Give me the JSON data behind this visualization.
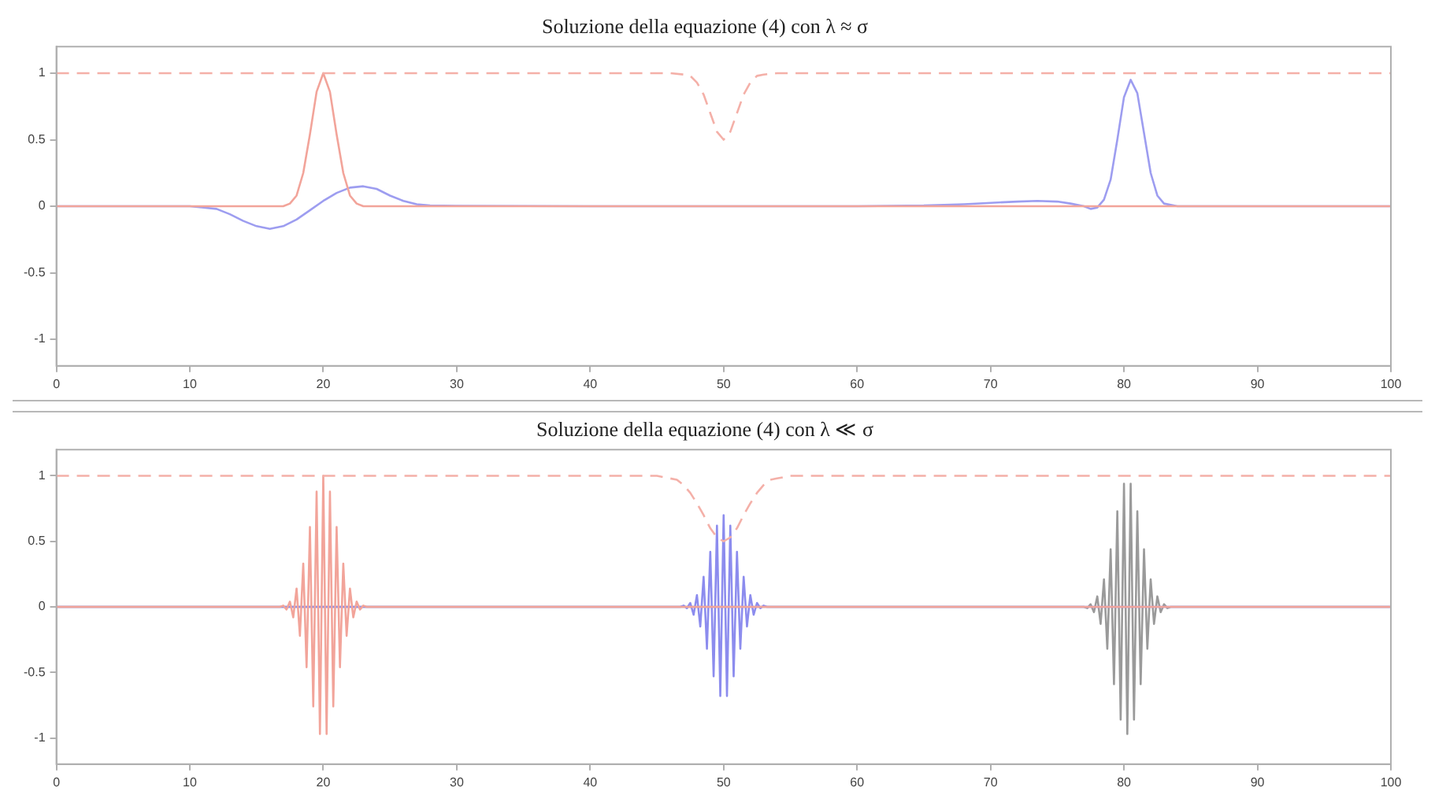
{
  "chart_data": [
    {
      "type": "line",
      "title": "Soluzione della equazione (4) con λ ≈ σ",
      "xlim": [
        0,
        100
      ],
      "xticks": [
        0,
        10,
        20,
        30,
        40,
        50,
        60,
        70,
        80,
        90,
        100
      ],
      "ylim": [
        -1.2,
        1.2
      ],
      "yticks": [
        -1,
        -0.5,
        0,
        0.5,
        1
      ],
      "grid": false,
      "legend": false,
      "series": [
        {
          "color": "#f4b0a8",
          "line_style": "dashed",
          "x": [
            0,
            46,
            47,
            47.5,
            48,
            48.5,
            49,
            49.5,
            50,
            50.5,
            51,
            51.5,
            52,
            52.5,
            53,
            54,
            100
          ],
          "values": [
            1,
            1,
            0.99,
            0.98,
            0.93,
            0.84,
            0.7,
            0.56,
            0.5,
            0.56,
            0.7,
            0.84,
            0.93,
            0.98,
            0.99,
            1,
            1
          ]
        },
        {
          "color": "#f2a49a",
          "x": [
            0,
            17,
            17.5,
            18,
            18.5,
            19,
            19.5,
            20,
            20.5,
            21,
            21.5,
            22,
            22.5,
            23,
            100
          ],
          "values": [
            0,
            0,
            0.02,
            0.08,
            0.25,
            0.54,
            0.86,
            1,
            0.86,
            0.54,
            0.25,
            0.08,
            0.02,
            0,
            0
          ]
        },
        {
          "color": "#9d9df0",
          "x": [
            0,
            10,
            12,
            13,
            14,
            15,
            16,
            17,
            18,
            19,
            20,
            21,
            22,
            23,
            24,
            25,
            26,
            27,
            28,
            30,
            40,
            60,
            65,
            68,
            70,
            72,
            73.5,
            75,
            76,
            77,
            77.5,
            78,
            78.5,
            79,
            79.5,
            80,
            80.5,
            81,
            81.5,
            82,
            82.5,
            83,
            84,
            100
          ],
          "values": [
            0,
            0,
            -0.02,
            -0.06,
            -0.11,
            -0.15,
            -0.17,
            -0.15,
            -0.1,
            -0.03,
            0.04,
            0.1,
            0.14,
            0.15,
            0.13,
            0.08,
            0.04,
            0.015,
            0.005,
            0.003,
            0,
            0,
            0.005,
            0.015,
            0.025,
            0.035,
            0.04,
            0.035,
            0.02,
            0,
            -0.02,
            -0.01,
            0.05,
            0.2,
            0.5,
            0.82,
            0.95,
            0.85,
            0.55,
            0.25,
            0.08,
            0.02,
            0,
            0
          ]
        }
      ]
    },
    {
      "type": "line",
      "title": "Soluzione della equazione (4) con λ ≪ σ",
      "xlim": [
        0,
        100
      ],
      "xticks": [
        0,
        10,
        20,
        30,
        40,
        50,
        60,
        70,
        80,
        90,
        100
      ],
      "ylim": [
        -1.2,
        1.2
      ],
      "yticks": [
        -1,
        -0.5,
        0,
        0.5,
        1
      ],
      "grid": false,
      "legend": false,
      "series": [
        {
          "color": "#f4b0a8",
          "line_style": "dashed",
          "x": [
            0,
            45,
            46,
            46.5,
            47,
            47.5,
            48,
            48.5,
            49,
            49.5,
            50,
            50.5,
            51,
            51.5,
            52,
            52.5,
            53,
            53.5,
            54,
            55,
            100
          ],
          "values": [
            1,
            1,
            0.98,
            0.97,
            0.93,
            0.87,
            0.79,
            0.7,
            0.6,
            0.53,
            0.5,
            0.53,
            0.6,
            0.7,
            0.79,
            0.87,
            0.93,
            0.97,
            0.98,
            1,
            1
          ]
        },
        {
          "color": "#f2a49a",
          "x": [
            0,
            16.75,
            17,
            17.25,
            17.5,
            17.75,
            18,
            18.25,
            18.5,
            18.75,
            19,
            19.25,
            19.5,
            19.75,
            20,
            20.25,
            20.5,
            20.75,
            21,
            21.25,
            21.5,
            21.75,
            22,
            22.25,
            22.5,
            22.75,
            23,
            23.25,
            100
          ],
          "values": [
            0,
            0,
            0.01,
            -0.02,
            0.04,
            -0.08,
            0.14,
            -0.22,
            0.33,
            -0.46,
            0.61,
            -0.76,
            0.88,
            -0.97,
            1,
            -0.97,
            0.88,
            -0.76,
            0.61,
            -0.46,
            0.33,
            -0.22,
            0.14,
            -0.08,
            0.04,
            -0.02,
            0.01,
            0,
            0
          ]
        },
        {
          "color": "#8c8cee",
          "x": [
            0,
            46.75,
            47,
            47.25,
            47.5,
            47.75,
            48,
            48.25,
            48.5,
            48.75,
            49,
            49.25,
            49.5,
            49.75,
            50,
            50.25,
            50.5,
            50.75,
            51,
            51.25,
            51.5,
            51.75,
            52,
            52.25,
            52.5,
            52.75,
            53,
            53.25,
            100
          ],
          "values": [
            0,
            0,
            0.01,
            -0.01,
            0.03,
            -0.06,
            0.09,
            -0.15,
            0.23,
            -0.32,
            0.42,
            -0.53,
            0.62,
            -0.68,
            0.7,
            -0.68,
            0.62,
            -0.53,
            0.42,
            -0.32,
            0.23,
            -0.15,
            0.09,
            -0.06,
            0.03,
            -0.01,
            0.01,
            0,
            0
          ]
        },
        {
          "color": "#9a9a9a",
          "x": [
            0,
            77,
            77.25,
            77.5,
            77.75,
            78,
            78.25,
            78.5,
            78.75,
            79,
            79.25,
            79.5,
            79.75,
            80,
            80.25,
            80.5,
            80.75,
            81,
            81.25,
            81.5,
            81.75,
            82,
            82.25,
            82.5,
            82.75,
            83,
            83.25,
            83.5,
            100
          ],
          "values": [
            0,
            0,
            -0.01,
            0.02,
            -0.04,
            0.08,
            -0.13,
            0.21,
            -0.32,
            0.44,
            -0.59,
            0.73,
            -0.86,
            0.94,
            -0.97,
            0.94,
            -0.86,
            0.73,
            -0.59,
            0.44,
            -0.32,
            0.21,
            -0.13,
            0.08,
            -0.04,
            0.02,
            -0.01,
            0,
            0
          ]
        }
      ]
    }
  ]
}
